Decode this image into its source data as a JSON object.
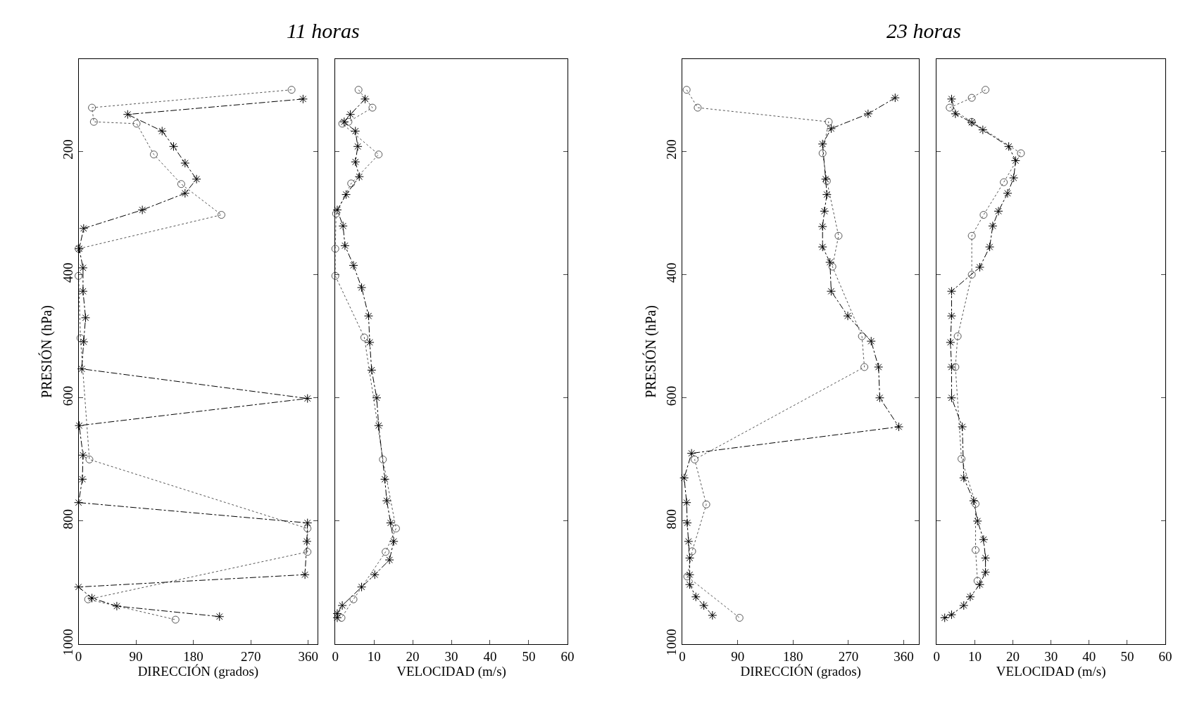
{
  "chart_data": [
    {
      "type": "line",
      "title": "11 horas",
      "xlabel": "DIRECCIÓN (grados)",
      "ylabel": "PRESIÓN (hPa)",
      "xlim": [
        0,
        375
      ],
      "xticks": [
        0,
        90,
        180,
        270,
        360
      ],
      "ylim": [
        1000,
        50
      ],
      "yticks": [
        200,
        400,
        600,
        800,
        1000
      ],
      "series": [
        {
          "color": "#555555",
          "marker": "circle",
          "line_style": "dotted",
          "x": [
            334,
            21,
            24,
            91,
            118,
            161,
            224,
            0,
            0,
            3,
            17,
            359,
            359,
            15,
            152
          ],
          "values": [
            100,
            129,
            152,
            155,
            205,
            253,
            303,
            358,
            402,
            503,
            700,
            812,
            850,
            927,
            960
          ]
        },
        {
          "color": "#000000",
          "marker": "cross",
          "line_style": "dashed",
          "x": [
            352,
            77,
            131,
            149,
            167,
            185,
            167,
            100,
            8,
            1,
            7,
            7,
            11,
            8,
            5,
            359,
            1,
            7,
            6,
            0,
            359,
            358,
            355,
            0,
            21,
            60,
            221
          ],
          "values": [
            115,
            140,
            167,
            192,
            219,
            245,
            268,
            295,
            325,
            358,
            389,
            427,
            470,
            509,
            553,
            601,
            645,
            693,
            732,
            770,
            803,
            833,
            887,
            907,
            925,
            938,
            955
          ]
        }
      ]
    },
    {
      "type": "line",
      "xlabel": "VELOCIDAD (m/s)",
      "xlim": [
        0,
        60
      ],
      "xticks": [
        0,
        10,
        20,
        30,
        40,
        50,
        60
      ],
      "ylim": [
        1000,
        50
      ],
      "yticks": [
        200,
        400,
        600,
        800,
        1000
      ],
      "tick_labels": "x",
      "series": [
        {
          "color": "#555555",
          "marker": "circle",
          "line_style": "dotted",
          "x": [
            6.0,
            9.6,
            3.4,
            1.8,
            11.2,
            4.1,
            0.2,
            0,
            0,
            7.5,
            12.3,
            15.7,
            13.0,
            4.7,
            1.6
          ],
          "values": [
            100,
            129,
            152,
            155,
            205,
            252,
            301,
            358,
            402,
            502,
            700,
            812,
            850,
            927,
            957
          ]
        },
        {
          "color": "#000000",
          "marker": "cross",
          "line_style": "dashed",
          "x": [
            7.7,
            3.9,
            2.3,
            5.2,
            5.8,
            5.2,
            6.2,
            2.8,
            0.5,
            2.0,
            2.5,
            4.7,
            6.8,
            8.6,
            8.9,
            9.4,
            10.7,
            11.2,
            12.8,
            13.3,
            14.3,
            15.1,
            14.0,
            10.2,
            6.8,
            1.8,
            0.5,
            0.5
          ],
          "values": [
            115,
            140,
            152,
            167,
            192,
            217,
            241,
            270,
            295,
            321,
            353,
            385,
            421,
            467,
            510,
            555,
            600,
            645,
            732,
            767,
            803,
            833,
            863,
            887,
            907,
            937,
            950,
            957
          ]
        }
      ]
    },
    {
      "type": "line",
      "title": "23 horas",
      "xlabel": "DIRECCIÓN (grados)",
      "ylabel": "PRESIÓN (hPa)",
      "xlim": [
        0,
        385
      ],
      "xticks": [
        0,
        90,
        180,
        270,
        360
      ],
      "ylim": [
        1000,
        50
      ],
      "yticks": [
        200,
        400,
        600,
        800,
        1000
      ],
      "series": [
        {
          "color": "#555555",
          "marker": "circle",
          "line_style": "dotted",
          "x": [
            7,
            25,
            238,
            228,
            235,
            254,
            244,
            292,
            296,
            20,
            39,
            16,
            8,
            93
          ],
          "values": [
            100,
            129,
            152,
            203,
            248,
            337,
            387,
            500,
            550,
            700,
            773,
            849,
            890,
            957
          ]
        },
        {
          "color": "#000000",
          "marker": "cross",
          "line_style": "dashed",
          "x": [
            346,
            302,
            242,
            228,
            233,
            235,
            231,
            228,
            228,
            240,
            242,
            269,
            307,
            319,
            321,
            352,
            15,
            3,
            7,
            8,
            10,
            12,
            12,
            12,
            22,
            35,
            49
          ],
          "values": [
            113,
            139,
            163,
            188,
            245,
            270,
            297,
            322,
            355,
            380,
            427,
            467,
            508,
            550,
            600,
            647,
            690,
            730,
            770,
            803,
            833,
            860,
            887,
            903,
            923,
            937,
            953
          ]
        }
      ]
    },
    {
      "type": "line",
      "xlabel": "VELOCIDAD (m/s)",
      "xlim": [
        0,
        60
      ],
      "xticks": [
        0,
        10,
        20,
        30,
        40,
        50,
        60
      ],
      "ylim": [
        1000,
        50
      ],
      "yticks": [
        200,
        400,
        600,
        800,
        1000
      ],
      "tick_labels": "x",
      "series": [
        {
          "color": "#555555",
          "marker": "circle",
          "line_style": "dotted",
          "x": [
            12.8,
            9.2,
            3.4,
            9.2,
            22.1,
            17.6,
            12.3,
            9.2,
            9.2,
            5.5,
            4.9,
            6.5,
            10.2,
            10.2,
            10.7
          ],
          "values": [
            100,
            113,
            129,
            152,
            203,
            250,
            303,
            337,
            400,
            500,
            550,
            699,
            772,
            847,
            897
          ]
        },
        {
          "color": "#000000",
          "marker": "cross",
          "line_style": "dashed",
          "x": [
            3.9,
            4.9,
            9.2,
            12.1,
            18.9,
            20.7,
            20.2,
            18.6,
            16.2,
            14.7,
            13.9,
            11.3,
            3.9,
            3.9,
            3.6,
            3.9,
            3.9,
            6.7,
            7.1,
            9.7,
            10.7,
            12.3,
            12.8,
            12.8,
            11.3,
            8.8,
            7.1,
            3.9,
            2.1
          ],
          "values": [
            115,
            139,
            153,
            165,
            192,
            215,
            243,
            268,
            297,
            321,
            355,
            388,
            427,
            467,
            510,
            550,
            600,
            647,
            730,
            767,
            800,
            830,
            860,
            883,
            903,
            923,
            937,
            952,
            957
          ]
        }
      ]
    }
  ]
}
